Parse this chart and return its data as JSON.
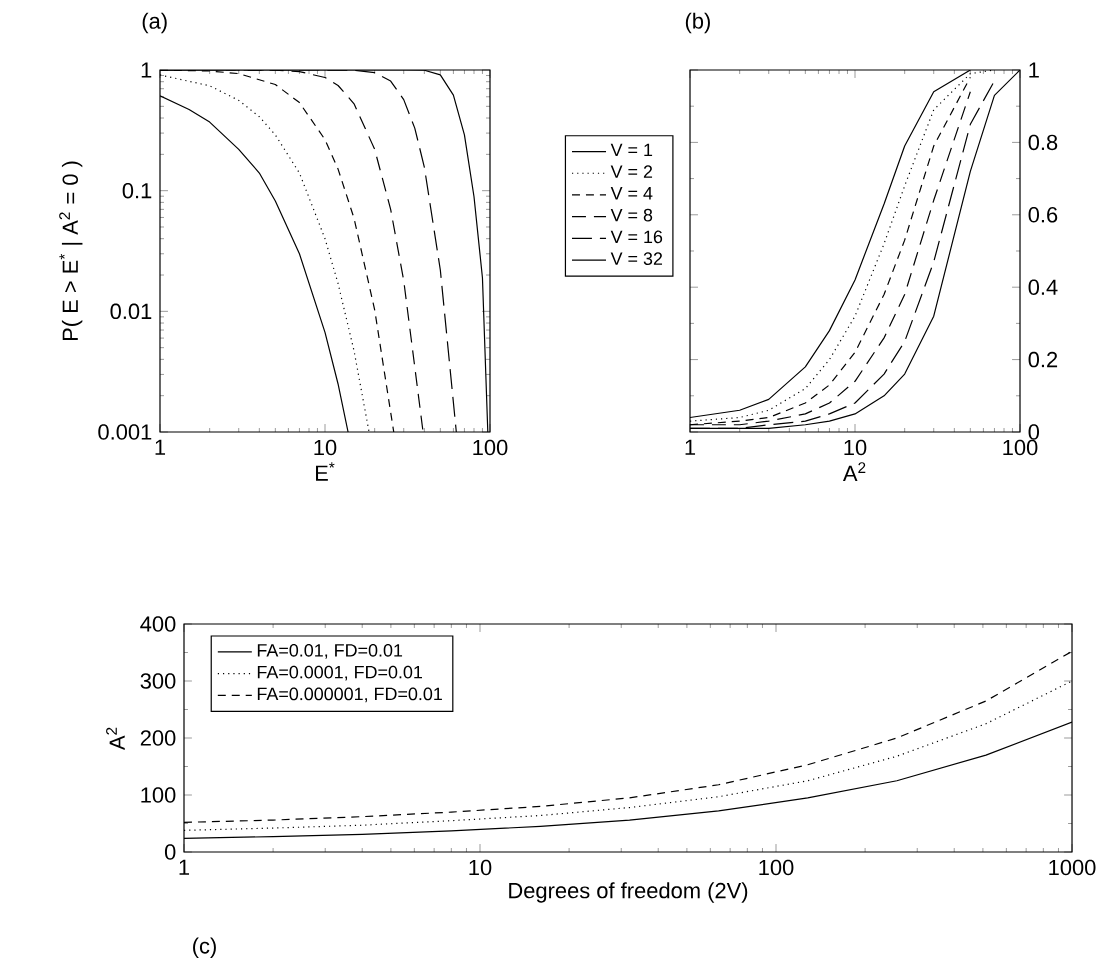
{
  "chart_data": [
    {
      "type": "line",
      "ylabel": "P( E > E$^{*}$ | A$^{2}$ = 0 )",
      "xlabel": "E$^{*}$",
      "annotations": [
        "(a)"
      ],
      "log": "xy",
      "xlim": [
        1,
        100
      ],
      "ylim": [
        0.001,
        1
      ],
      "xticks": [
        1,
        10,
        100
      ],
      "yticks": [
        0.001,
        0.01,
        0.1,
        1
      ],
      "series": [
        {
          "color": "#000000",
          "line_style": "solid",
          "x": [
            1,
            1.5,
            2,
            3,
            4,
            5,
            7,
            10,
            12,
            13.8
          ],
          "values": [
            0.61,
            0.47,
            0.37,
            0.22,
            0.14,
            0.082,
            0.03,
            0.0067,
            0.0025,
            0.001
          ]
        },
        {
          "color": "#000000",
          "line_style": "dotted",
          "x": [
            1,
            2,
            3,
            4,
            5,
            7,
            10,
            12,
            15,
            18.5
          ],
          "values": [
            0.91,
            0.74,
            0.56,
            0.41,
            0.29,
            0.14,
            0.04,
            0.017,
            0.0047,
            0.001
          ]
        },
        {
          "color": "#000000",
          "line_style": "dashed",
          "x": [
            1,
            2,
            3,
            5,
            7,
            10,
            12,
            15,
            20,
            26.1
          ],
          "values": [
            0.998,
            0.981,
            0.934,
            0.758,
            0.537,
            0.265,
            0.151,
            0.059,
            0.0103,
            0.001
          ]
        },
        {
          "color": "#000000",
          "line_style": "dashed",
          "x": [
            1,
            3,
            5,
            7,
            10,
            12,
            15,
            20,
            25,
            30,
            39.3
          ],
          "values": [
            1,
            1,
            0.996,
            0.97,
            0.867,
            0.744,
            0.525,
            0.22,
            0.07,
            0.018,
            0.001
          ]
        },
        {
          "color": "#000000",
          "line_style": "dashed",
          "x": [
            1,
            10,
            15,
            20,
            25,
            30,
            35,
            40,
            50,
            62.5
          ],
          "values": [
            1,
            1,
            0.995,
            0.951,
            0.81,
            0.568,
            0.33,
            0.157,
            0.022,
            0.001
          ]
        },
        {
          "color": "#000000",
          "line_style": "solid",
          "x": [
            1,
            30,
            40,
            50,
            60,
            70,
            80,
            90,
            97
          ],
          "values": [
            1,
            1,
            0.995,
            0.91,
            0.62,
            0.29,
            0.089,
            0.019,
            0.001
          ]
        }
      ]
    },
    {
      "type": "line",
      "xlabel": "A$^{2}$",
      "annotations": [
        "(b)"
      ],
      "log": "x",
      "legend": "left",
      "xlim": [
        1,
        100
      ],
      "ylim": [
        0,
        1
      ],
      "xticks": [
        1,
        10,
        100
      ],
      "yticks": [
        0,
        0.2,
        0.4,
        0.6,
        0.8,
        1
      ],
      "series": [
        {
          "name": "V = 1",
          "color": "#000000",
          "line_style": "solid",
          "x": [
            1,
            2,
            3,
            5,
            7,
            10,
            15,
            20,
            30,
            50
          ],
          "values": [
            0.04,
            0.06,
            0.09,
            0.18,
            0.28,
            0.42,
            0.63,
            0.79,
            0.94,
            1
          ]
        },
        {
          "name": "V = 2",
          "color": "#000000",
          "line_style": "dotted",
          "x": [
            1,
            2,
            3,
            5,
            7,
            10,
            15,
            20,
            30,
            50,
            70
          ],
          "values": [
            0.03,
            0.04,
            0.06,
            0.12,
            0.2,
            0.32,
            0.52,
            0.68,
            0.89,
            0.99,
            1
          ]
        },
        {
          "name": "V = 4",
          "color": "#000000",
          "line_style": "dashed",
          "x": [
            1,
            2,
            3,
            5,
            7,
            10,
            15,
            20,
            30,
            50
          ],
          "values": [
            0.02,
            0.03,
            0.04,
            0.08,
            0.13,
            0.22,
            0.38,
            0.53,
            0.79,
            0.98
          ]
        },
        {
          "name": "V = 8",
          "color": "#000000",
          "line_style": "dashed",
          "x": [
            1,
            2,
            3,
            5,
            7,
            10,
            15,
            20,
            30,
            50
          ],
          "values": [
            0.02,
            0.02,
            0.03,
            0.05,
            0.08,
            0.14,
            0.26,
            0.38,
            0.64,
            0.94
          ]
        },
        {
          "name": "V = 16",
          "color": "#000000",
          "line_style": "dashed",
          "x": [
            1,
            2,
            3,
            5,
            7,
            10,
            15,
            20,
            30,
            50,
            70
          ],
          "values": [
            0.01,
            0.01,
            0.02,
            0.03,
            0.05,
            0.08,
            0.16,
            0.25,
            0.47,
            0.85,
            0.97
          ]
        },
        {
          "name": "V = 32",
          "color": "#000000",
          "line_style": "solid",
          "x": [
            1,
            2,
            3,
            5,
            7,
            10,
            15,
            20,
            30,
            50,
            70,
            100
          ],
          "values": [
            0.01,
            0.01,
            0.01,
            0.02,
            0.03,
            0.05,
            0.1,
            0.16,
            0.32,
            0.72,
            0.93,
            1
          ]
        }
      ]
    },
    {
      "type": "line",
      "xlabel": "Degrees of freedom (2V)",
      "ylabel": "A$^{2}$",
      "annotations": [
        "(c)"
      ],
      "log": "x",
      "legend": "top left",
      "xlim": [
        1,
        1000
      ],
      "ylim": [
        0,
        400
      ],
      "xticks": [
        1,
        10,
        100,
        1000
      ],
      "yticks": [
        0,
        100,
        200,
        300,
        400
      ],
      "x": [
        1,
        2,
        4,
        8,
        16,
        32,
        64,
        128,
        256,
        512,
        1000
      ],
      "series": [
        {
          "name": "FA=0.01,  FD=0.01",
          "color": "#000000",
          "line_style": "solid",
          "values": [
            24,
            27,
            31,
            37,
            45,
            56,
            72,
            95,
            125,
            170,
            228
          ]
        },
        {
          "name": "FA=0.0001, FD=0.01",
          "color": "#000000",
          "line_style": "dotted",
          "values": [
            38,
            42,
            47,
            55,
            64,
            78,
            97,
            125,
            168,
            225,
            300
          ]
        },
        {
          "name": "FA=0.000001, FD=0.01",
          "color": "#000000",
          "line_style": "dashed",
          "values": [
            52,
            56,
            62,
            70,
            80,
            95,
            118,
            153,
            200,
            265,
            352
          ]
        }
      ]
    }
  ]
}
